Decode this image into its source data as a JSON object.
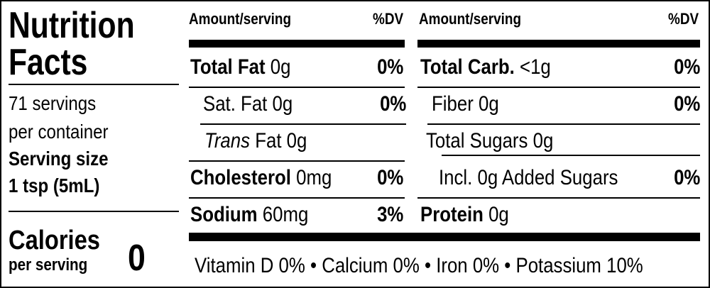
{
  "title_lines": [
    "Nutrition",
    "Facts"
  ],
  "servings": [
    "71 servings",
    "per container"
  ],
  "serving_size": {
    "label": "Serving size",
    "value": "1 tsp (5mL)"
  },
  "calories": {
    "label": "Calories",
    "sub": "per serving",
    "value": "0"
  },
  "columns": [
    {
      "header": {
        "amount": "Amount/serving",
        "dv": "%DV"
      },
      "rows": [
        {
          "name": "Total Fat",
          "amount": "0g",
          "dv": "0%"
        },
        {
          "name": "Sat. Fat",
          "amount": "0g",
          "dv": "0%"
        },
        {
          "italic": "Trans",
          "name": "Fat",
          "amount": "0g"
        },
        {
          "name": "Cholesterol",
          "amount": "0mg",
          "dv": "0%"
        },
        {
          "name": "Sodium",
          "amount": "60mg",
          "dv": "3%"
        }
      ]
    },
    {
      "header": {
        "amount": "Amount/serving",
        "dv": "%DV"
      },
      "rows": [
        {
          "name": "Total Carb.",
          "amount": "<1g",
          "dv": "0%"
        },
        {
          "name": "Fiber",
          "amount": "0g",
          "dv": "0%"
        },
        {
          "name": "Total Sugars",
          "amount": "0g"
        },
        {
          "name": "Incl. 0g Added Sugars",
          "dv": "0%"
        },
        {
          "name": "Protein",
          "amount": "0g"
        }
      ]
    }
  ],
  "footer": "Vitamin D 0% • Calcium 0% • Iron 0% • Potassium 10%"
}
